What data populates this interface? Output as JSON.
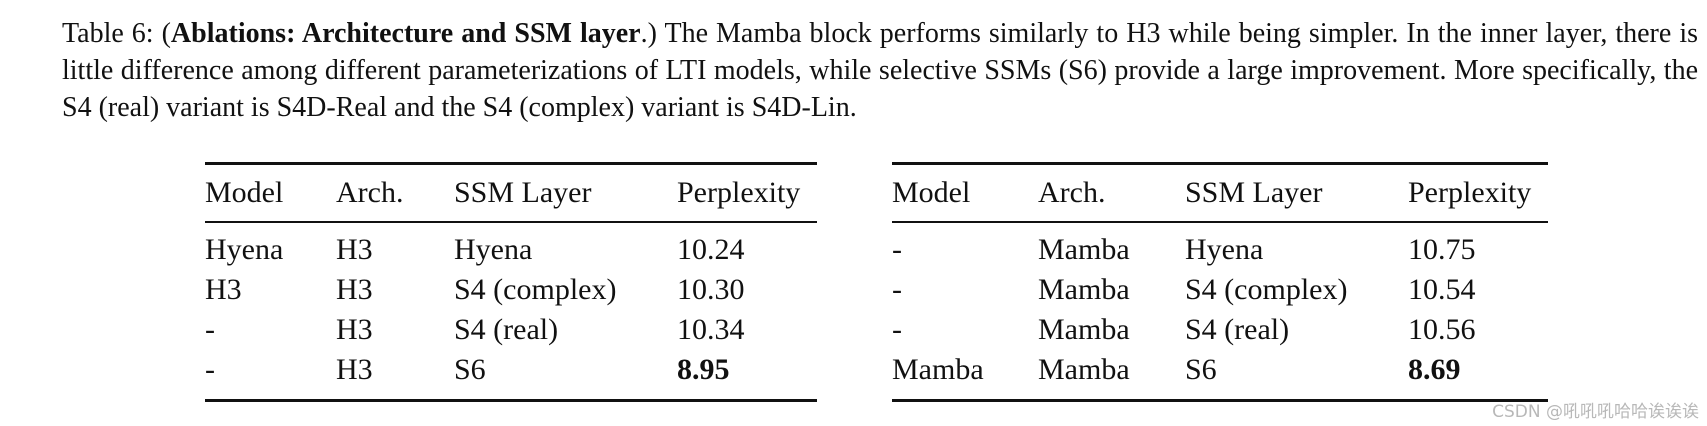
{
  "caption": {
    "prefix": "Table 6: (",
    "bold": "Ablations: Architecture and SSM layer",
    "text": ".)  The Mamba block performs similarly to H3 while being simpler.  In the inner layer, there is little difference among different parameterizations of LTI models, while selective SSMs (S6) provide a large improvement. More specifically, the S4 (real) variant is S4D-Real and the S4 (complex) variant is S4D-Lin."
  },
  "tables": [
    {
      "header": [
        "Model",
        "Arch.",
        "SSM Layer",
        "Perplexity"
      ],
      "rows": [
        [
          "Hyena",
          "H3",
          "Hyena",
          "10.24"
        ],
        [
          "H3",
          "H3",
          "S4 (complex)",
          "10.30"
        ],
        [
          "-",
          "H3",
          "S4 (real)",
          "10.34"
        ],
        [
          "-",
          "H3",
          "S6",
          "8.95"
        ]
      ]
    },
    {
      "header": [
        "Model",
        "Arch.",
        "SSM Layer",
        "Perplexity"
      ],
      "rows": [
        [
          "-",
          "Mamba",
          "Hyena",
          "10.75"
        ],
        [
          "-",
          "Mamba",
          "S4 (complex)",
          "10.54"
        ],
        [
          "-",
          "Mamba",
          "S4 (real)",
          "10.56"
        ],
        [
          "Mamba",
          "Mamba",
          "S6",
          "8.69"
        ]
      ]
    }
  ],
  "watermark": "CSDN @吼吼吼哈哈诶诶诶"
}
